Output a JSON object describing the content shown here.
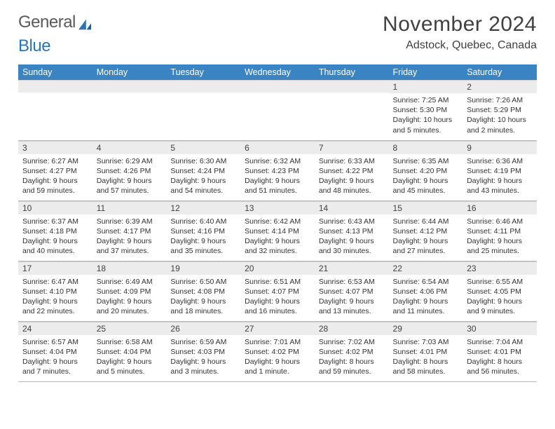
{
  "logo": {
    "text1": "General",
    "text2": "Blue"
  },
  "title": "November 2024",
  "location": "Adstock, Quebec, Canada",
  "colors": {
    "header_bg": "#3a84c4",
    "header_text": "#ffffff",
    "daynum_bg": "#ececec",
    "border": "#b8b8b8",
    "text": "#404040",
    "logo_gray": "#5a5a5a",
    "logo_blue": "#2e74b5"
  },
  "weekdays": [
    "Sunday",
    "Monday",
    "Tuesday",
    "Wednesday",
    "Thursday",
    "Friday",
    "Saturday"
  ],
  "weeks": [
    [
      null,
      null,
      null,
      null,
      null,
      {
        "n": "1",
        "sr": "7:25 AM",
        "ss": "5:30 PM",
        "dl": "10 hours and 5 minutes."
      },
      {
        "n": "2",
        "sr": "7:26 AM",
        "ss": "5:29 PM",
        "dl": "10 hours and 2 minutes."
      }
    ],
    [
      {
        "n": "3",
        "sr": "6:27 AM",
        "ss": "4:27 PM",
        "dl": "9 hours and 59 minutes."
      },
      {
        "n": "4",
        "sr": "6:29 AM",
        "ss": "4:26 PM",
        "dl": "9 hours and 57 minutes."
      },
      {
        "n": "5",
        "sr": "6:30 AM",
        "ss": "4:24 PM",
        "dl": "9 hours and 54 minutes."
      },
      {
        "n": "6",
        "sr": "6:32 AM",
        "ss": "4:23 PM",
        "dl": "9 hours and 51 minutes."
      },
      {
        "n": "7",
        "sr": "6:33 AM",
        "ss": "4:22 PM",
        "dl": "9 hours and 48 minutes."
      },
      {
        "n": "8",
        "sr": "6:35 AM",
        "ss": "4:20 PM",
        "dl": "9 hours and 45 minutes."
      },
      {
        "n": "9",
        "sr": "6:36 AM",
        "ss": "4:19 PM",
        "dl": "9 hours and 43 minutes."
      }
    ],
    [
      {
        "n": "10",
        "sr": "6:37 AM",
        "ss": "4:18 PM",
        "dl": "9 hours and 40 minutes."
      },
      {
        "n": "11",
        "sr": "6:39 AM",
        "ss": "4:17 PM",
        "dl": "9 hours and 37 minutes."
      },
      {
        "n": "12",
        "sr": "6:40 AM",
        "ss": "4:16 PM",
        "dl": "9 hours and 35 minutes."
      },
      {
        "n": "13",
        "sr": "6:42 AM",
        "ss": "4:14 PM",
        "dl": "9 hours and 32 minutes."
      },
      {
        "n": "14",
        "sr": "6:43 AM",
        "ss": "4:13 PM",
        "dl": "9 hours and 30 minutes."
      },
      {
        "n": "15",
        "sr": "6:44 AM",
        "ss": "4:12 PM",
        "dl": "9 hours and 27 minutes."
      },
      {
        "n": "16",
        "sr": "6:46 AM",
        "ss": "4:11 PM",
        "dl": "9 hours and 25 minutes."
      }
    ],
    [
      {
        "n": "17",
        "sr": "6:47 AM",
        "ss": "4:10 PM",
        "dl": "9 hours and 22 minutes."
      },
      {
        "n": "18",
        "sr": "6:49 AM",
        "ss": "4:09 PM",
        "dl": "9 hours and 20 minutes."
      },
      {
        "n": "19",
        "sr": "6:50 AM",
        "ss": "4:08 PM",
        "dl": "9 hours and 18 minutes."
      },
      {
        "n": "20",
        "sr": "6:51 AM",
        "ss": "4:07 PM",
        "dl": "9 hours and 16 minutes."
      },
      {
        "n": "21",
        "sr": "6:53 AM",
        "ss": "4:07 PM",
        "dl": "9 hours and 13 minutes."
      },
      {
        "n": "22",
        "sr": "6:54 AM",
        "ss": "4:06 PM",
        "dl": "9 hours and 11 minutes."
      },
      {
        "n": "23",
        "sr": "6:55 AM",
        "ss": "4:05 PM",
        "dl": "9 hours and 9 minutes."
      }
    ],
    [
      {
        "n": "24",
        "sr": "6:57 AM",
        "ss": "4:04 PM",
        "dl": "9 hours and 7 minutes."
      },
      {
        "n": "25",
        "sr": "6:58 AM",
        "ss": "4:04 PM",
        "dl": "9 hours and 5 minutes."
      },
      {
        "n": "26",
        "sr": "6:59 AM",
        "ss": "4:03 PM",
        "dl": "9 hours and 3 minutes."
      },
      {
        "n": "27",
        "sr": "7:01 AM",
        "ss": "4:02 PM",
        "dl": "9 hours and 1 minute."
      },
      {
        "n": "28",
        "sr": "7:02 AM",
        "ss": "4:02 PM",
        "dl": "8 hours and 59 minutes."
      },
      {
        "n": "29",
        "sr": "7:03 AM",
        "ss": "4:01 PM",
        "dl": "8 hours and 58 minutes."
      },
      {
        "n": "30",
        "sr": "7:04 AM",
        "ss": "4:01 PM",
        "dl": "8 hours and 56 minutes."
      }
    ]
  ],
  "labels": {
    "sunrise": "Sunrise:",
    "sunset": "Sunset:",
    "daylight": "Daylight:"
  }
}
